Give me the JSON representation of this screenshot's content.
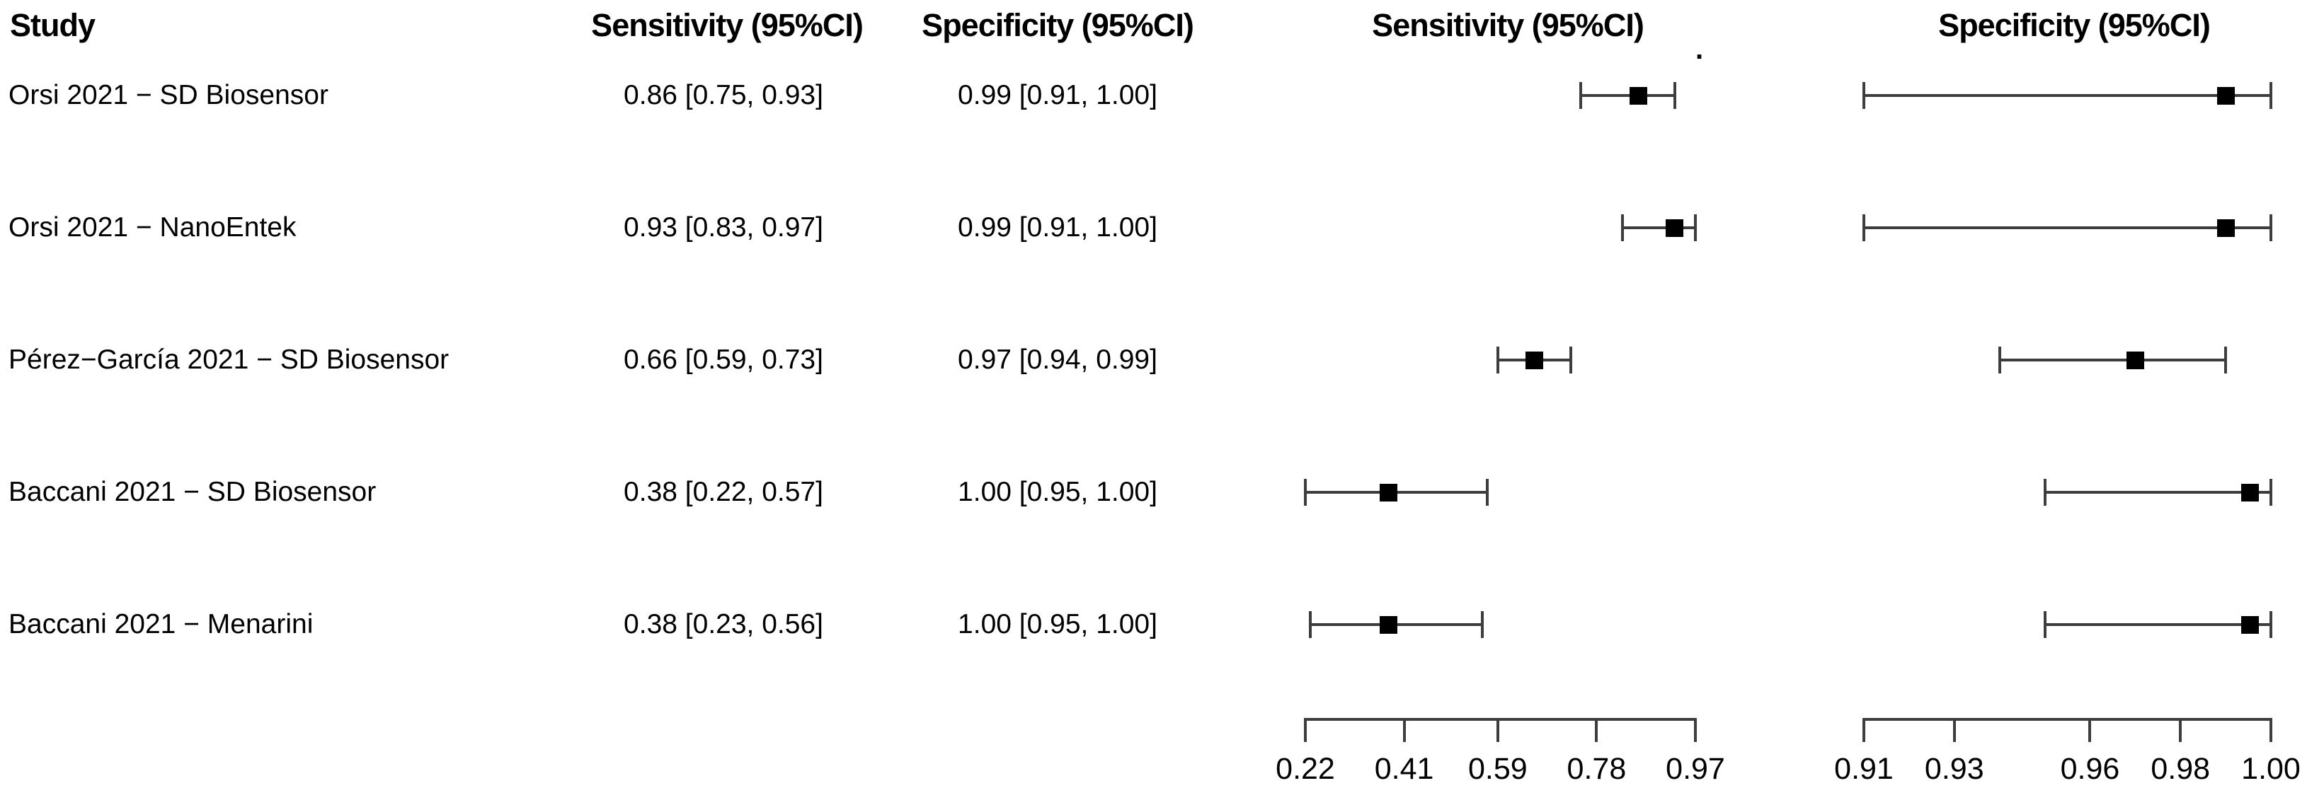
{
  "figure": {
    "headers": {
      "study": "Study",
      "sensitivity_values_col": "Sensitivity (95%CI)",
      "specificity_values_col": "Specificity (95%CI)",
      "sensitivity_plot": "Sensitivity (95%CI)",
      "specificity_plot": "Specificity (95%CI)",
      "stray_dot": "."
    },
    "rows": [
      {
        "study": "Orsi 2021 − SD Biosensor",
        "sensitivity_text": "0.86 [0.75, 0.93]",
        "specificity_text": "0.99 [0.91, 1.00]",
        "sens": {
          "est": 0.86,
          "lo": 0.75,
          "hi": 0.93
        },
        "spec": {
          "est": 0.99,
          "lo": 0.91,
          "hi": 1.0
        }
      },
      {
        "study": "Orsi 2021 − NanoEntek",
        "sensitivity_text": "0.93 [0.83, 0.97]",
        "specificity_text": "0.99 [0.91, 1.00]",
        "sens": {
          "est": 0.93,
          "lo": 0.83,
          "hi": 0.97
        },
        "spec": {
          "est": 0.99,
          "lo": 0.91,
          "hi": 1.0
        }
      },
      {
        "study": "Pérez−García 2021 − SD Biosensor",
        "sensitivity_text": "0.66 [0.59, 0.73]",
        "specificity_text": "0.97 [0.94, 0.99]",
        "sens": {
          "est": 0.66,
          "lo": 0.59,
          "hi": 0.73
        },
        "spec": {
          "est": 0.97,
          "lo": 0.94,
          "hi": 0.99
        }
      },
      {
        "study": "Baccani 2021 − SD Biosensor",
        "sensitivity_text": "0.38 [0.22, 0.57]",
        "specificity_text": "1.00 [0.95, 1.00]",
        "sens": {
          "est": 0.38,
          "lo": 0.22,
          "hi": 0.57
        },
        "spec": {
          "est": 1.0,
          "lo": 0.95,
          "hi": 1.0
        }
      },
      {
        "study": "Baccani 2021 − Menarini",
        "sensitivity_text": "0.38 [0.23, 0.56]",
        "specificity_text": "1.00 [0.95, 1.00]",
        "sens": {
          "est": 0.38,
          "lo": 0.23,
          "hi": 0.56
        },
        "spec": {
          "est": 1.0,
          "lo": 0.95,
          "hi": 1.0
        }
      }
    ],
    "sensitivity_axis": {
      "min": 0.22,
      "max": 0.97,
      "tick_values": [
        0.22,
        0.41,
        0.59,
        0.78,
        0.97
      ],
      "tick_labels": [
        "0.22",
        "0.41",
        "0.59",
        "0.78",
        "0.97"
      ]
    },
    "specificity_axis": {
      "min": 0.91,
      "max": 1.0,
      "tick_values": [
        0.91,
        0.93,
        0.96,
        0.98,
        1.0
      ],
      "tick_labels": [
        "0.91",
        "0.93",
        "0.96",
        "0.98",
        "1.00"
      ]
    },
    "colors": {
      "text": "#000000",
      "line": "#3d3d3d",
      "marker": "#000000",
      "background": "#ffffff"
    }
  },
  "chart_data": [
    {
      "type": "scatter",
      "subtype": "forest-plot",
      "title": "Sensitivity (95%CI)",
      "categories": [
        "Orsi 2021 − SD Biosensor",
        "Orsi 2021 − NanoEntek",
        "Pérez−García 2021 − SD Biosensor",
        "Baccani 2021 − SD Biosensor",
        "Baccani 2021 − Menarini"
      ],
      "series": [
        {
          "name": "Sensitivity point estimate [95% CI]",
          "values": [
            {
              "est": 0.86,
              "lo": 0.75,
              "hi": 0.93
            },
            {
              "est": 0.93,
              "lo": 0.83,
              "hi": 0.97
            },
            {
              "est": 0.66,
              "lo": 0.59,
              "hi": 0.73
            },
            {
              "est": 0.38,
              "lo": 0.22,
              "hi": 0.57
            },
            {
              "est": 0.38,
              "lo": 0.23,
              "hi": 0.56
            }
          ]
        }
      ],
      "xlabel": "",
      "ylabel": "",
      "xlim": [
        0.22,
        0.97
      ],
      "xticks": [
        0.22,
        0.41,
        0.59,
        0.78,
        0.97
      ],
      "grid": false,
      "legend_position": "none"
    },
    {
      "type": "scatter",
      "subtype": "forest-plot",
      "title": "Specificity (95%CI)",
      "categories": [
        "Orsi 2021 − SD Biosensor",
        "Orsi 2021 − NanoEntek",
        "Pérez−García 2021 − SD Biosensor",
        "Baccani 2021 − SD Biosensor",
        "Baccani 2021 − Menarini"
      ],
      "series": [
        {
          "name": "Specificity point estimate [95% CI]",
          "values": [
            {
              "est": 0.99,
              "lo": 0.91,
              "hi": 1.0
            },
            {
              "est": 0.99,
              "lo": 0.91,
              "hi": 1.0
            },
            {
              "est": 0.97,
              "lo": 0.94,
              "hi": 0.99
            },
            {
              "est": 1.0,
              "lo": 0.95,
              "hi": 1.0
            },
            {
              "est": 1.0,
              "lo": 0.95,
              "hi": 1.0
            }
          ]
        }
      ],
      "xlabel": "",
      "ylabel": "",
      "xlim": [
        0.91,
        1.0
      ],
      "xticks": [
        0.91,
        0.93,
        0.96,
        0.98,
        1.0
      ],
      "grid": false,
      "legend_position": "none"
    }
  ]
}
